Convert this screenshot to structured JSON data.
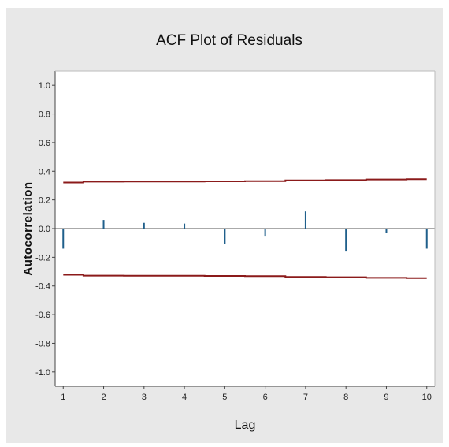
{
  "chart_data": {
    "type": "bar",
    "title": "ACF Plot of Residuals",
    "xlabel": "Lag",
    "ylabel": "Autocorrelation",
    "x": [
      1,
      2,
      3,
      4,
      5,
      6,
      7,
      8,
      9,
      10
    ],
    "xticks": [
      "1",
      "2",
      "3",
      "4",
      "5",
      "6",
      "7",
      "8",
      "9",
      "10"
    ],
    "yticks": [
      "1.0",
      "0.8",
      "0.6",
      "0.4",
      "0.2",
      "0.0",
      "-0.2",
      "-0.4",
      "-0.6",
      "-0.8",
      "-1.0"
    ],
    "ylim": [
      -1.1,
      1.1
    ],
    "grid": false,
    "series": [
      {
        "type": "spike",
        "color": "#1f5f8b",
        "values": [
          -0.14,
          0.06,
          0.04,
          0.035,
          -0.11,
          -0.05,
          0.12,
          -0.16,
          -0.03,
          -0.14
        ]
      }
    ],
    "significance_limits": {
      "color": "#8b1a1a",
      "upper": [
        0.322,
        0.328,
        0.329,
        0.329,
        0.33,
        0.331,
        0.337,
        0.339,
        0.343,
        0.345
      ],
      "lower": [
        -0.322,
        -0.328,
        -0.329,
        -0.329,
        -0.33,
        -0.331,
        -0.337,
        -0.339,
        -0.343,
        -0.345
      ]
    },
    "colors": {
      "frame_background": "#e8e8e8",
      "plot_background": "#ffffff",
      "axis_line": "#444444"
    }
  }
}
